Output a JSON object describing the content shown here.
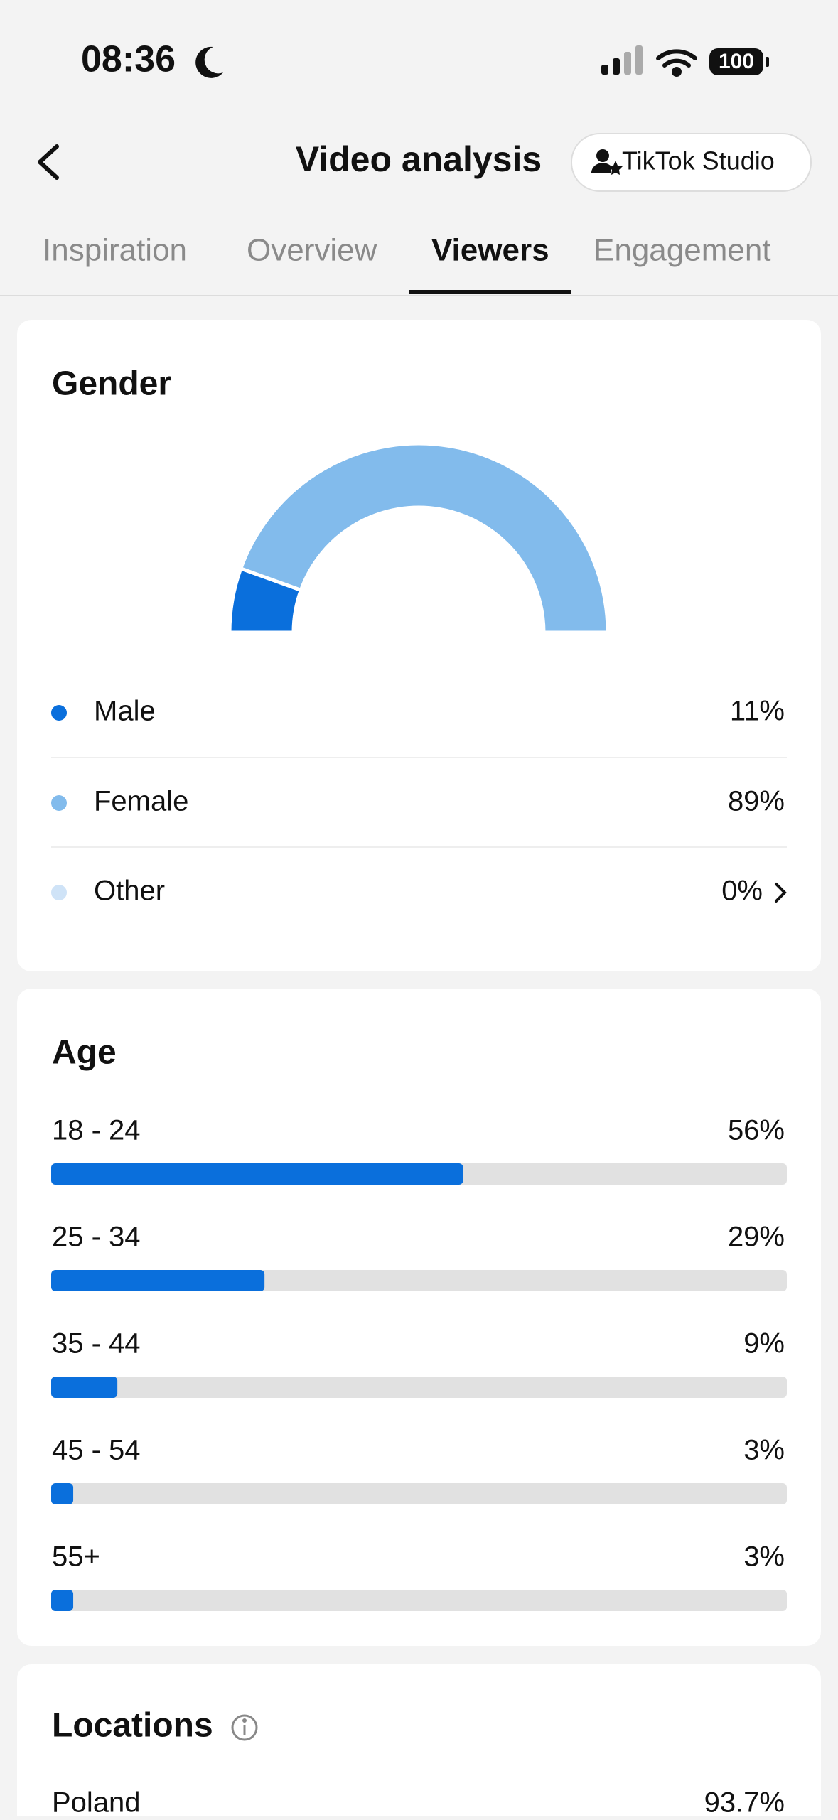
{
  "status_bar": {
    "time": "08:36",
    "battery": "100"
  },
  "header": {
    "title": "Video analysis",
    "studio_button": "TikTok Studio"
  },
  "tabs": [
    "Inspiration",
    "Overview",
    "Viewers",
    "Engagement"
  ],
  "active_tab": 2,
  "gender": {
    "title": "Gender",
    "labels": [
      "Male",
      "Female",
      "Other"
    ],
    "values": [
      11,
      89,
      0
    ],
    "value_labels": [
      "11%",
      "89%",
      "0%"
    ],
    "colors": [
      "#0a6fdc",
      "#82bbec",
      "#cfe3f7"
    ]
  },
  "age": {
    "title": "Age",
    "labels": [
      "18 - 24",
      "25 - 34",
      "35 - 44",
      "45 - 54",
      "55+"
    ],
    "values": [
      56,
      29,
      9,
      3,
      3
    ],
    "value_labels": [
      "56%",
      "29%",
      "9%",
      "3%",
      "3%"
    ],
    "xlim": [
      0,
      100
    ],
    "color": "#0a6fdc"
  },
  "locations": {
    "title": "Locations",
    "items": [
      {
        "name": "Poland",
        "share": "93.7%"
      }
    ]
  }
}
